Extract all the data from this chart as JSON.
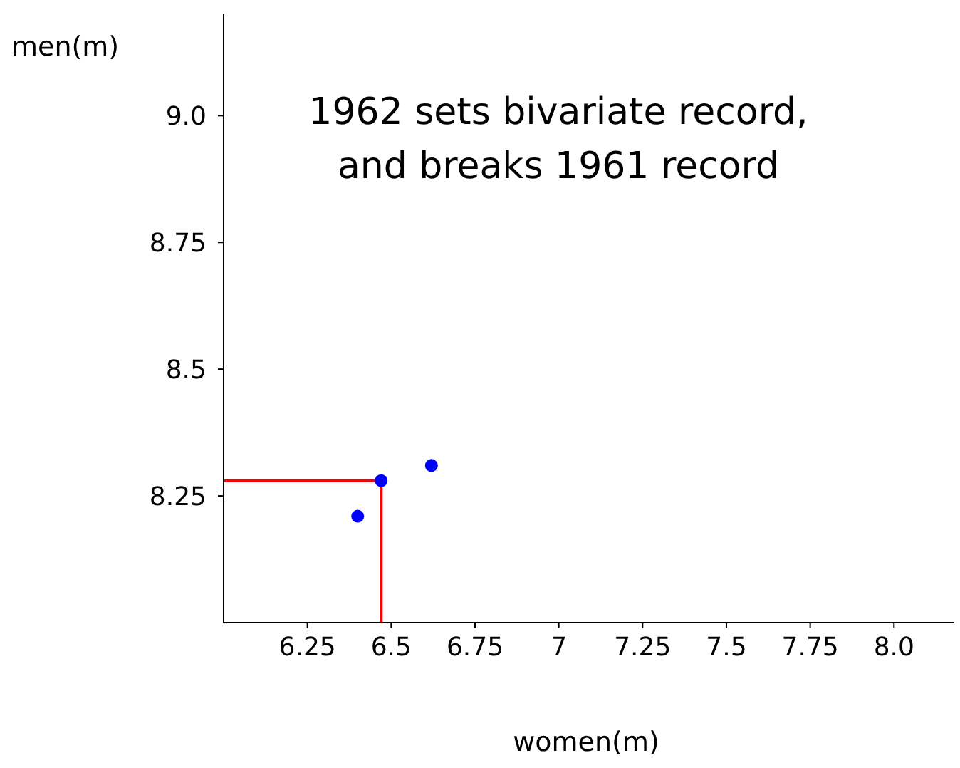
{
  "chart_data": {
    "type": "scatter",
    "xlabel": "women(m)",
    "ylabel": "men(m)",
    "annotations": [
      "1962 sets bivariate record, and breaks 1961 record"
    ],
    "series": [
      {
        "color": "#0000ff",
        "x": [
          6.4,
          6.47,
          6.62
        ],
        "values": [
          8.21,
          8.28,
          8.31
        ],
        "marker": "circle"
      },
      {
        "type": "line",
        "color": "#ff0000",
        "x": [
          6.0,
          6.47,
          6.47
        ],
        "values": [
          8.28,
          8.28,
          8.0
        ],
        "marker": "none"
      }
    ],
    "xlim": [
      6.0,
      8.18
    ],
    "ylim": [
      8.0,
      9.2
    ],
    "xticks": [
      6.25,
      6.5,
      6.75,
      7,
      7.25,
      7.5,
      7.75,
      {
        "value": 8,
        "label": "8.0"
      }
    ],
    "yticks": [
      8.25,
      8.5,
      8.75,
      {
        "value": 9,
        "label": "9.0"
      }
    ],
    "grid": false
  }
}
